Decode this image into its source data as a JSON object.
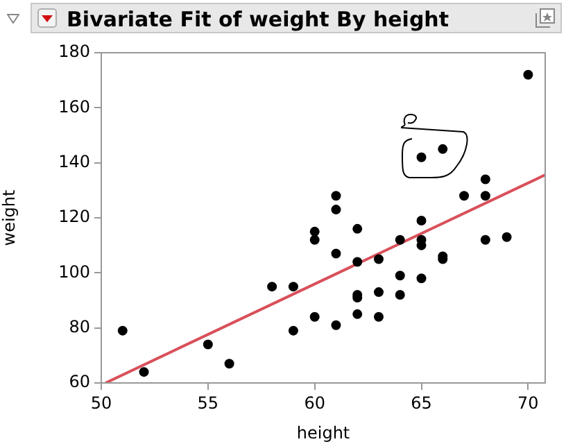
{
  "chart_data": {
    "type": "scatter",
    "title": "Bivariate Fit of weight By height",
    "xlabel": "height",
    "ylabel": "weight",
    "xlim": [
      50,
      70.8
    ],
    "xticks": [
      50,
      55,
      60,
      65,
      70
    ],
    "ylim": [
      60,
      180
    ],
    "yticks": [
      60,
      80,
      100,
      120,
      140,
      160,
      180
    ],
    "grid": false,
    "legend": false,
    "marker": "circle",
    "series": [
      {
        "type": "scatter",
        "color": "#000000",
        "x": [
          51,
          52,
          55,
          56,
          58,
          59,
          59,
          60,
          60,
          60,
          61,
          61,
          61,
          61,
          62,
          62,
          62,
          62,
          62,
          63,
          63,
          63,
          64,
          64,
          64,
          65,
          65,
          65,
          65,
          65,
          66,
          66,
          66,
          67,
          68,
          68,
          68,
          69,
          70
        ],
        "values": [
          79,
          64,
          74,
          67,
          95,
          79,
          95,
          84,
          112,
          115,
          81,
          107,
          123,
          128,
          85,
          91,
          92,
          104,
          116,
          84,
          93,
          105,
          92,
          99,
          112,
          98,
          110,
          112,
          119,
          142,
          105,
          106,
          145,
          128,
          112,
          128,
          134,
          113,
          172
        ]
      },
      {
        "type": "line",
        "color": "#d9505a",
        "line_style": "solid",
        "marker": "none",
        "x": [
          50.2,
          70.8
        ],
        "values": [
          60,
          135.6
        ]
      }
    ]
  }
}
